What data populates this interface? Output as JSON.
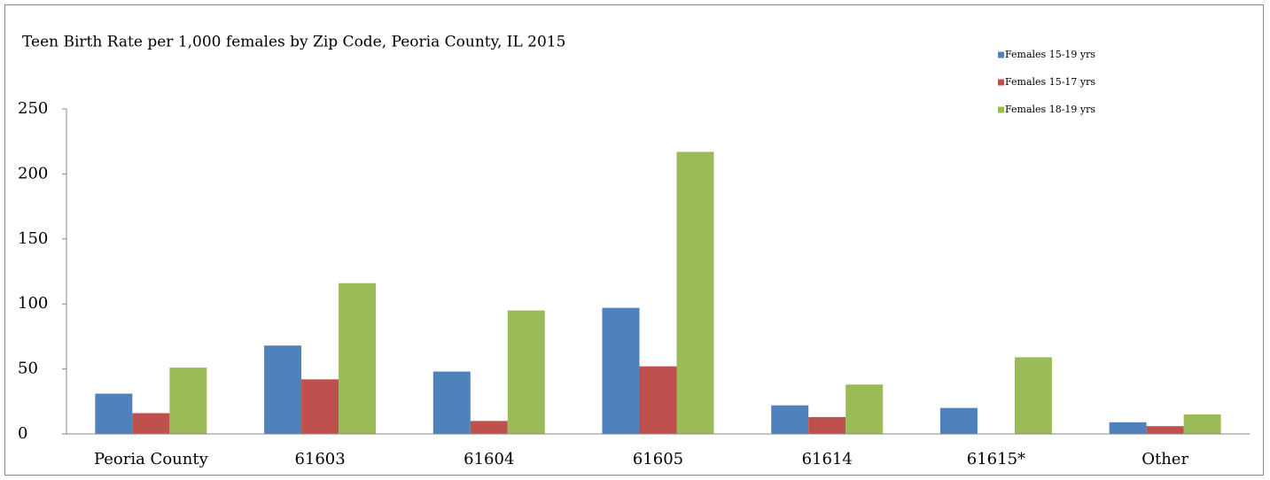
{
  "chart_data": {
    "type": "bar",
    "title": "Teen Birth Rate per 1,000 females by Zip Code, Peoria County, IL 2015",
    "categories": [
      "Peoria County",
      "61603",
      "61604",
      "61605",
      "61614",
      "61615*",
      "Other"
    ],
    "series": [
      {
        "name": "Females 15-19 yrs",
        "color": "#4f81bd",
        "values": [
          31,
          68,
          48,
          97,
          22,
          20,
          9
        ]
      },
      {
        "name": "Females 15-17 yrs",
        "color": "#c0504d",
        "values": [
          16,
          42,
          10,
          52,
          13,
          null,
          6
        ]
      },
      {
        "name": "Females 18-19 yrs",
        "color": "#9bbb59",
        "values": [
          51,
          116,
          95,
          217,
          38,
          59,
          15
        ]
      }
    ],
    "ylim": [
      0,
      250
    ],
    "yticks": [
      0,
      50,
      100,
      150,
      200,
      250
    ],
    "grid": false,
    "legend": "top-right"
  }
}
